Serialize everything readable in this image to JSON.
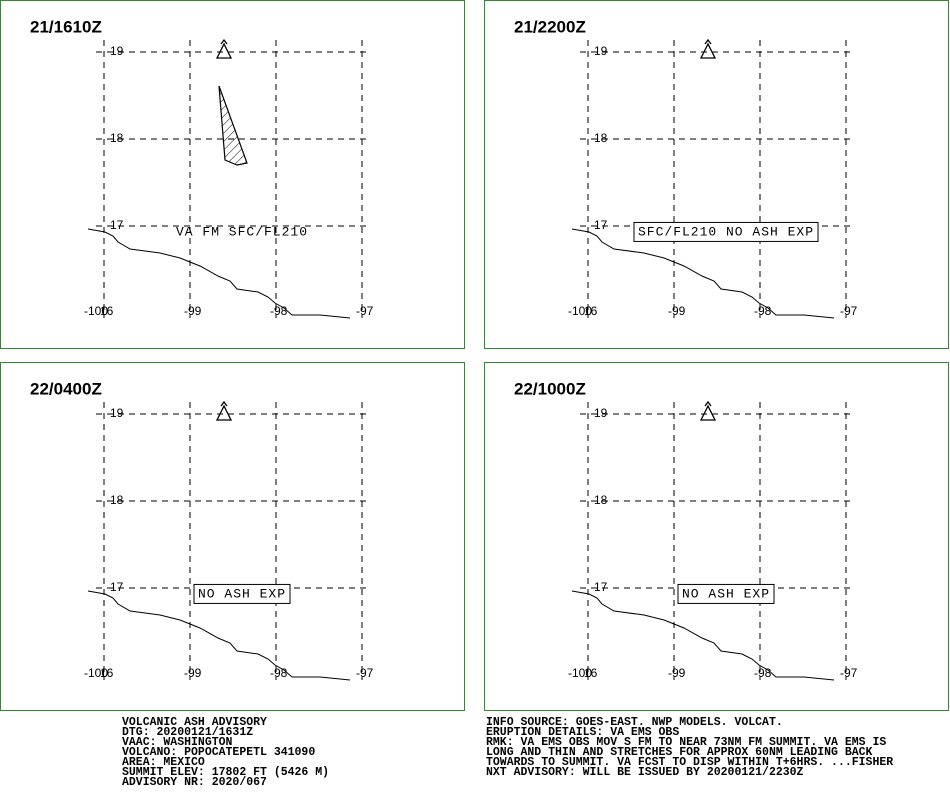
{
  "panels": [
    {
      "time": "21/1610Z",
      "annotation": "VA FM SFC/FL210",
      "boxed": false
    },
    {
      "time": "21/2200Z",
      "annotation": "SFC/FL210 NO ASH EXP",
      "boxed": true
    },
    {
      "time": "22/0400Z",
      "annotation": "NO ASH EXP",
      "boxed": true
    },
    {
      "time": "22/1000Z",
      "annotation": "NO ASH EXP",
      "boxed": true
    }
  ],
  "grid": {
    "lat_labels": [
      "19",
      "18",
      "17",
      "16"
    ],
    "lon_labels": [
      "-100",
      "-99",
      "-98",
      "-97"
    ]
  },
  "advisory_left": [
    "VOLCANIC ASH ADVISORY",
    "DTG: 20200121/1631Z",
    "VAAC: WASHINGTON",
    "VOLCANO: POPOCATEPETL 341090",
    "AREA: MEXICO",
    "SUMMIT ELEV: 17802 FT (5426 M)",
    "ADVISORY NR: 2020/067"
  ],
  "advisory_right": [
    "INFO SOURCE: GOES-EAST. NWP MODELS. VOLCAT.",
    "ERUPTION DETAILS: VA EMS OBS",
    "RMK: VA EMS OBS MOV S FM TO NEAR 73NM FM SUMMIT. VA EMS IS",
    "LONG AND THIN AND STRETCHES FOR APPROX 60NM LEADING BACK",
    "TOWARDS TO SUMMIT. VA FCST TO DISP WITHIN T+6HRS. ...FISHER",
    "NXT ADVISORY: WILL BE ISSUED BY 20200121/2230Z"
  ]
}
